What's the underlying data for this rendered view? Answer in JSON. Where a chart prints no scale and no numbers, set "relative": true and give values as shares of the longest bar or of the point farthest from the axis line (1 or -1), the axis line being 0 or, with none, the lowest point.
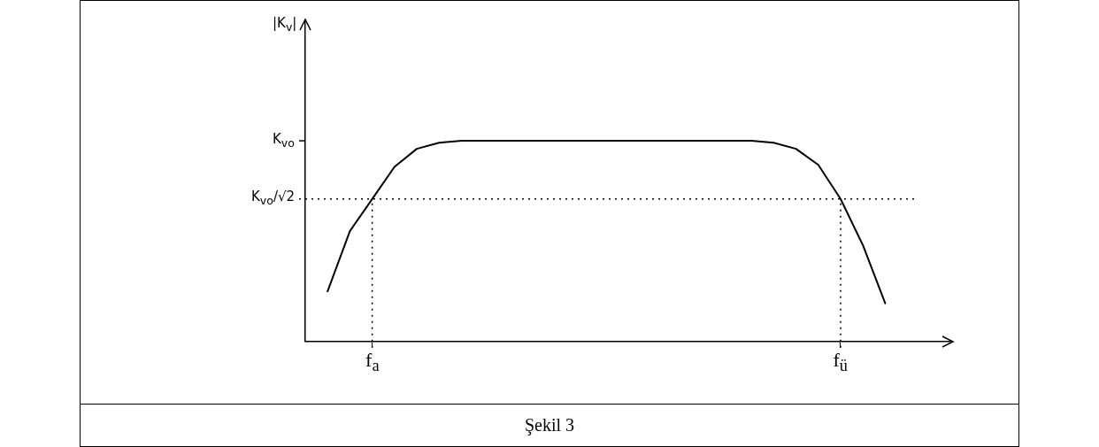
{
  "chart_data": {
    "type": "line",
    "relative": true,
    "categories": [
      null,
      null,
      null,
      "f$_{a}$",
      null,
      null,
      null,
      null,
      null,
      null,
      null,
      null,
      null,
      null,
      null,
      null,
      null,
      null,
      null,
      null,
      null,
      null,
      null,
      null,
      "f$_{ü}$",
      null,
      null,
      null,
      null,
      null
    ],
    "annotations": [
      "Şekil 3",
      "K$_{vo}$",
      "|K$_{v}$|"
    ],
    "ref_lines": [
      {
        "axis": "y",
        "value": 0.71,
        "label": "K$_{vo}$/√2",
        "line_style": "dotted",
        "color": "#000000"
      },
      {
        "axis": "x",
        "value": "f$_{a}$",
        "line_style": "dotted",
        "color": "#000000"
      },
      {
        "axis": "x",
        "value": "f$_{ü}$",
        "line_style": "dotted",
        "color": "#000000"
      }
    ],
    "series": [
      {
        "color": "#000000",
        "values": [
          null,
          0.25,
          0.55,
          0.71,
          0.87,
          0.96,
          0.99,
          1,
          1,
          1,
          1,
          1,
          1,
          1,
          1,
          1,
          1,
          1,
          1,
          1,
          1,
          0.99,
          0.96,
          0.88,
          0.71,
          0.48,
          0.19,
          null,
          null,
          null
        ]
      }
    ]
  }
}
